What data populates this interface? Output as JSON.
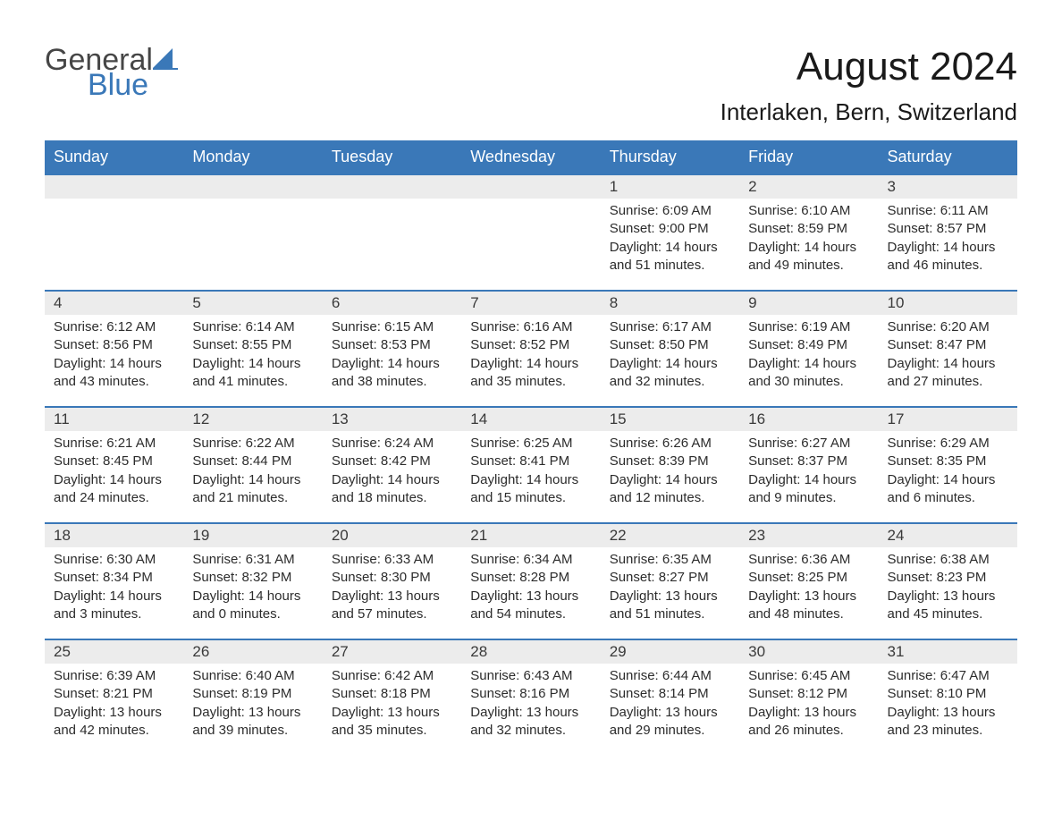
{
  "brand": {
    "part1": "General",
    "part2": "Blue"
  },
  "title": "August 2024",
  "location": "Interlaken, Bern, Switzerland",
  "colors": {
    "header_bg": "#3a78b8",
    "header_fg": "#ffffff",
    "row_divider": "#3a78b8",
    "daynum_bg": "#ececec",
    "body_text": "#2c2c2c",
    "page_bg": "#ffffff"
  },
  "layout": {
    "columns": 7,
    "rows": 5,
    "leading_blanks": 4,
    "font_family": "Arial, Helvetica, sans-serif",
    "title_fontsize": 44,
    "location_fontsize": 26,
    "header_fontsize": 18,
    "daynum_fontsize": 17,
    "body_fontsize": 15
  },
  "weekdays": [
    "Sunday",
    "Monday",
    "Tuesday",
    "Wednesday",
    "Thursday",
    "Friday",
    "Saturday"
  ],
  "labels": {
    "sunrise": "Sunrise:",
    "sunset": "Sunset:",
    "daylight": "Daylight:"
  },
  "days": [
    {
      "n": 1,
      "sunrise": "6:09 AM",
      "sunset": "9:00 PM",
      "daylight": "14 hours and 51 minutes."
    },
    {
      "n": 2,
      "sunrise": "6:10 AM",
      "sunset": "8:59 PM",
      "daylight": "14 hours and 49 minutes."
    },
    {
      "n": 3,
      "sunrise": "6:11 AM",
      "sunset": "8:57 PM",
      "daylight": "14 hours and 46 minutes."
    },
    {
      "n": 4,
      "sunrise": "6:12 AM",
      "sunset": "8:56 PM",
      "daylight": "14 hours and 43 minutes."
    },
    {
      "n": 5,
      "sunrise": "6:14 AM",
      "sunset": "8:55 PM",
      "daylight": "14 hours and 41 minutes."
    },
    {
      "n": 6,
      "sunrise": "6:15 AM",
      "sunset": "8:53 PM",
      "daylight": "14 hours and 38 minutes."
    },
    {
      "n": 7,
      "sunrise": "6:16 AM",
      "sunset": "8:52 PM",
      "daylight": "14 hours and 35 minutes."
    },
    {
      "n": 8,
      "sunrise": "6:17 AM",
      "sunset": "8:50 PM",
      "daylight": "14 hours and 32 minutes."
    },
    {
      "n": 9,
      "sunrise": "6:19 AM",
      "sunset": "8:49 PM",
      "daylight": "14 hours and 30 minutes."
    },
    {
      "n": 10,
      "sunrise": "6:20 AM",
      "sunset": "8:47 PM",
      "daylight": "14 hours and 27 minutes."
    },
    {
      "n": 11,
      "sunrise": "6:21 AM",
      "sunset": "8:45 PM",
      "daylight": "14 hours and 24 minutes."
    },
    {
      "n": 12,
      "sunrise": "6:22 AM",
      "sunset": "8:44 PM",
      "daylight": "14 hours and 21 minutes."
    },
    {
      "n": 13,
      "sunrise": "6:24 AM",
      "sunset": "8:42 PM",
      "daylight": "14 hours and 18 minutes."
    },
    {
      "n": 14,
      "sunrise": "6:25 AM",
      "sunset": "8:41 PM",
      "daylight": "14 hours and 15 minutes."
    },
    {
      "n": 15,
      "sunrise": "6:26 AM",
      "sunset": "8:39 PM",
      "daylight": "14 hours and 12 minutes."
    },
    {
      "n": 16,
      "sunrise": "6:27 AM",
      "sunset": "8:37 PM",
      "daylight": "14 hours and 9 minutes."
    },
    {
      "n": 17,
      "sunrise": "6:29 AM",
      "sunset": "8:35 PM",
      "daylight": "14 hours and 6 minutes."
    },
    {
      "n": 18,
      "sunrise": "6:30 AM",
      "sunset": "8:34 PM",
      "daylight": "14 hours and 3 minutes."
    },
    {
      "n": 19,
      "sunrise": "6:31 AM",
      "sunset": "8:32 PM",
      "daylight": "14 hours and 0 minutes."
    },
    {
      "n": 20,
      "sunrise": "6:33 AM",
      "sunset": "8:30 PM",
      "daylight": "13 hours and 57 minutes."
    },
    {
      "n": 21,
      "sunrise": "6:34 AM",
      "sunset": "8:28 PM",
      "daylight": "13 hours and 54 minutes."
    },
    {
      "n": 22,
      "sunrise": "6:35 AM",
      "sunset": "8:27 PM",
      "daylight": "13 hours and 51 minutes."
    },
    {
      "n": 23,
      "sunrise": "6:36 AM",
      "sunset": "8:25 PM",
      "daylight": "13 hours and 48 minutes."
    },
    {
      "n": 24,
      "sunrise": "6:38 AM",
      "sunset": "8:23 PM",
      "daylight": "13 hours and 45 minutes."
    },
    {
      "n": 25,
      "sunrise": "6:39 AM",
      "sunset": "8:21 PM",
      "daylight": "13 hours and 42 minutes."
    },
    {
      "n": 26,
      "sunrise": "6:40 AM",
      "sunset": "8:19 PM",
      "daylight": "13 hours and 39 minutes."
    },
    {
      "n": 27,
      "sunrise": "6:42 AM",
      "sunset": "8:18 PM",
      "daylight": "13 hours and 35 minutes."
    },
    {
      "n": 28,
      "sunrise": "6:43 AM",
      "sunset": "8:16 PM",
      "daylight": "13 hours and 32 minutes."
    },
    {
      "n": 29,
      "sunrise": "6:44 AM",
      "sunset": "8:14 PM",
      "daylight": "13 hours and 29 minutes."
    },
    {
      "n": 30,
      "sunrise": "6:45 AM",
      "sunset": "8:12 PM",
      "daylight": "13 hours and 26 minutes."
    },
    {
      "n": 31,
      "sunrise": "6:47 AM",
      "sunset": "8:10 PM",
      "daylight": "13 hours and 23 minutes."
    }
  ]
}
